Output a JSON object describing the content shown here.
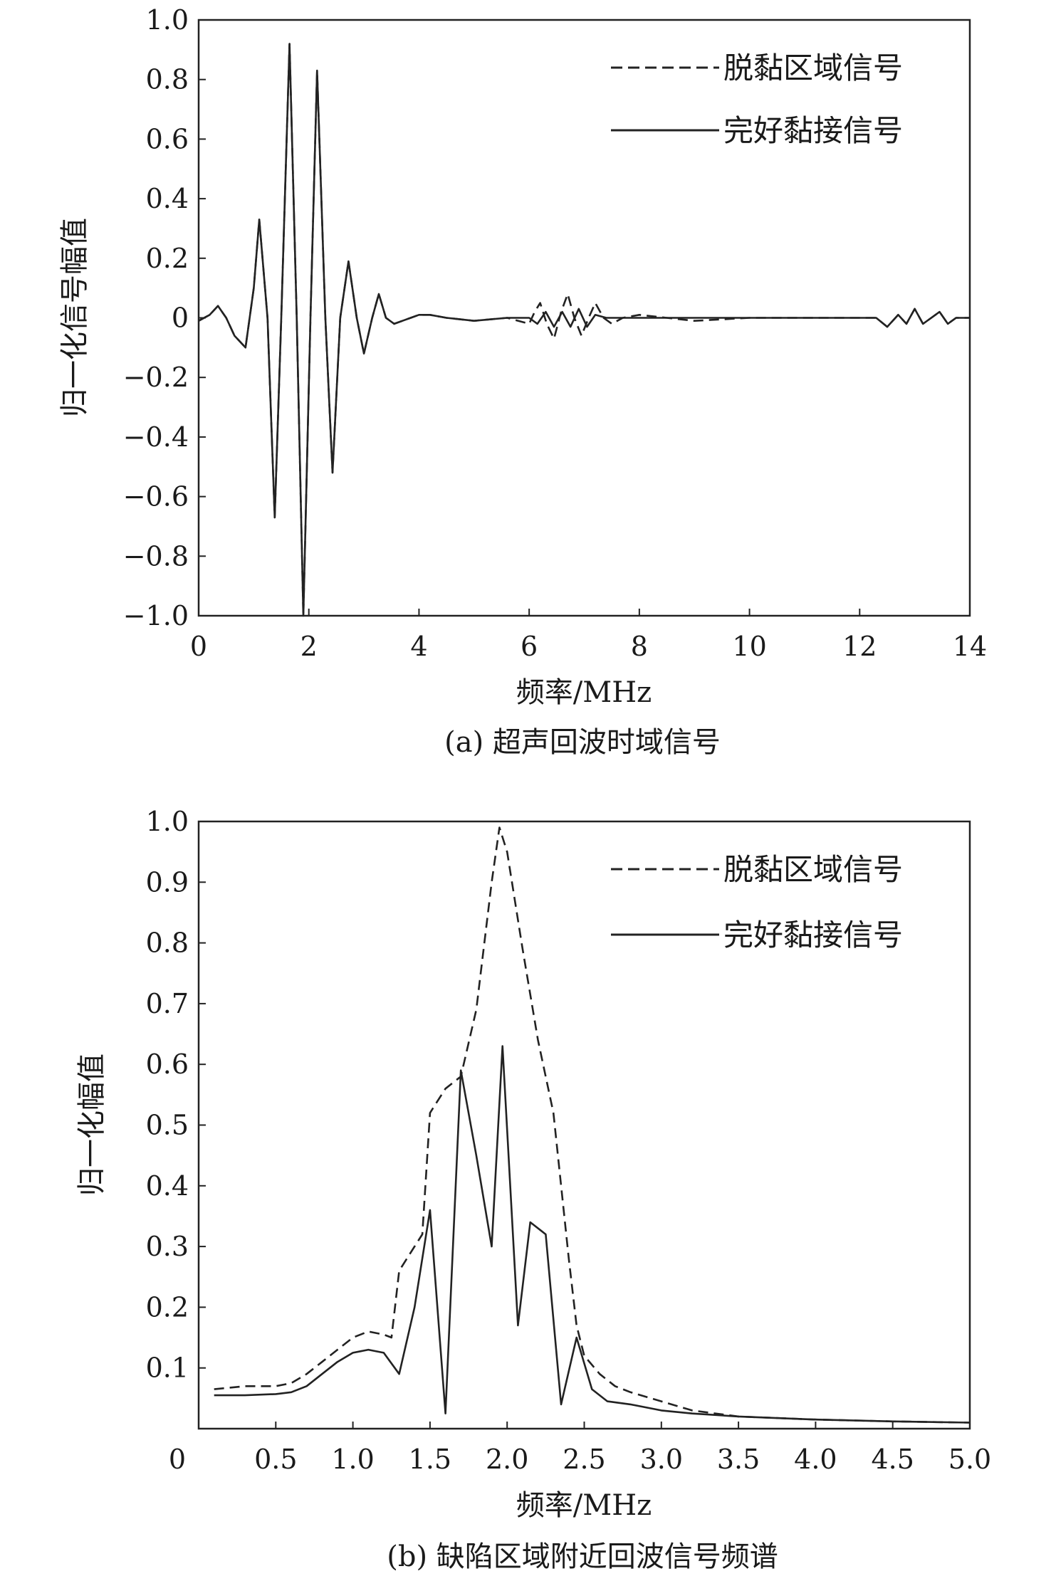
{
  "chart_data": [
    {
      "type": "line",
      "caption": "(a) 超声回波时域信号",
      "xlabel": "频率/MHz",
      "ylabel": "归一化信号幅值",
      "xlim": [
        0,
        14
      ],
      "ylim": [
        -1.0,
        1.0
      ],
      "x_ticks": [
        0,
        2,
        4,
        6,
        8,
        10,
        12,
        14
      ],
      "x_tick_labels": [
        "0",
        "2",
        "4",
        "6",
        "8",
        "10",
        "12",
        "14"
      ],
      "y_ticks": [
        1.0,
        0.8,
        0.6,
        0.4,
        0.2,
        0,
        -0.2,
        -0.4,
        -0.6,
        -0.8,
        -1.0
      ],
      "y_tick_labels": [
        "1.0",
        "0.8",
        "0.6",
        "0.4",
        "0.2",
        "0",
        "−0.2",
        "−0.4",
        "−0.6",
        "−0.8",
        "−1.0"
      ],
      "legend_position": "top-right",
      "series": [
        {
          "name": "脱黏区域信号",
          "style": "dashed",
          "x": [
            0,
            0.2,
            0.35,
            0.5,
            0.65,
            0.85,
            1.0,
            1.1,
            1.25,
            1.38,
            1.5,
            1.65,
            1.78,
            1.9,
            2.03,
            2.15,
            2.3,
            2.43,
            2.57,
            2.72,
            2.87,
            3.0,
            3.15,
            3.27,
            3.4,
            3.55,
            3.7,
            3.85,
            4.0,
            4.2,
            4.5,
            5.0,
            5.6,
            6.0,
            6.1,
            6.2,
            6.32,
            6.45,
            6.58,
            6.7,
            6.82,
            6.95,
            7.08,
            7.2,
            7.35,
            7.5,
            7.7,
            8.0,
            8.5,
            9.0,
            10.0,
            11.0,
            12.0,
            12.3,
            12.5,
            12.7,
            12.85,
            13.0,
            13.15,
            13.3,
            13.45,
            13.6,
            13.75,
            14.0
          ],
          "y": [
            -0.01,
            0.01,
            0.04,
            0.0,
            -0.06,
            -0.1,
            0.1,
            0.33,
            0.0,
            -0.67,
            0.0,
            0.92,
            0.0,
            -1.0,
            0.0,
            0.83,
            0.0,
            -0.52,
            0.0,
            0.19,
            0.0,
            -0.12,
            0.0,
            0.08,
            0.0,
            -0.02,
            -0.01,
            0.0,
            0.01,
            0.01,
            0.0,
            -0.01,
            0.0,
            -0.02,
            0.02,
            0.05,
            -0.02,
            -0.07,
            0.02,
            0.08,
            0.0,
            -0.06,
            0.0,
            0.05,
            0.0,
            -0.02,
            0.0,
            0.01,
            0.0,
            -0.01,
            0.0,
            0.0,
            0.0,
            0.0,
            -0.03,
            0.01,
            -0.02,
            0.03,
            -0.02,
            0.0,
            0.02,
            -0.02,
            0.0,
            0.0
          ]
        },
        {
          "name": "完好黏接信号",
          "style": "solid",
          "x": [
            0,
            0.2,
            0.35,
            0.5,
            0.65,
            0.85,
            1.0,
            1.1,
            1.25,
            1.38,
            1.5,
            1.65,
            1.78,
            1.9,
            2.03,
            2.15,
            2.3,
            2.43,
            2.57,
            2.72,
            2.87,
            3.0,
            3.15,
            3.27,
            3.4,
            3.55,
            3.7,
            3.85,
            4.0,
            4.2,
            4.5,
            5.0,
            5.6,
            6.0,
            6.15,
            6.3,
            6.45,
            6.6,
            6.75,
            6.9,
            7.05,
            7.2,
            7.4,
            7.7,
            8.0,
            8.5,
            9.0,
            10.0,
            11.0,
            12.0,
            12.3,
            12.5,
            12.7,
            12.85,
            13.0,
            13.15,
            13.3,
            13.45,
            13.6,
            13.75,
            14.0
          ],
          "y": [
            -0.01,
            0.01,
            0.04,
            0.0,
            -0.06,
            -0.1,
            0.1,
            0.33,
            0.0,
            -0.67,
            0.0,
            0.92,
            0.0,
            -1.0,
            0.0,
            0.83,
            0.0,
            -0.52,
            0.0,
            0.19,
            0.0,
            -0.12,
            0.0,
            0.08,
            0.0,
            -0.02,
            -0.01,
            0.0,
            0.01,
            0.01,
            0.0,
            -0.01,
            0.0,
            0.0,
            -0.02,
            0.02,
            -0.03,
            0.02,
            -0.03,
            0.03,
            -0.03,
            0.01,
            0.0,
            0.0,
            0.0,
            0.0,
            0.0,
            0.0,
            0.0,
            0.0,
            0.0,
            -0.03,
            0.01,
            -0.02,
            0.03,
            -0.02,
            0.0,
            0.02,
            -0.02,
            0.0,
            0.0
          ]
        }
      ]
    },
    {
      "type": "line",
      "caption": "(b) 缺陷区域附近回波信号频谱",
      "xlabel": "频率/MHz",
      "ylabel": "归一化幅值",
      "xlim": [
        0,
        5.0
      ],
      "ylim": [
        0,
        1.0
      ],
      "x_ticks": [
        0,
        0.5,
        1.0,
        1.5,
        2.0,
        2.5,
        3.0,
        3.5,
        4.0,
        4.5,
        5.0
      ],
      "x_tick_labels": [
        "0",
        "0.5",
        "1.0",
        "1.5",
        "2.0",
        "2.5",
        "3.0",
        "3.5",
        "4.0",
        "4.5",
        "5.0"
      ],
      "y_ticks": [
        1.0,
        0.9,
        0.8,
        0.7,
        0.6,
        0.5,
        0.4,
        0.3,
        0.2,
        0.1
      ],
      "y_tick_labels": [
        "1.0",
        "0.9",
        "0.8",
        "0.7",
        "0.6",
        "0.5",
        "0.4",
        "0.3",
        "0.2",
        "0.1"
      ],
      "legend_position": "top-right",
      "series": [
        {
          "name": "脱黏区域信号",
          "style": "dashed",
          "x": [
            0.1,
            0.3,
            0.5,
            0.6,
            0.7,
            0.8,
            0.9,
            1.0,
            1.1,
            1.2,
            1.25,
            1.3,
            1.4,
            1.45,
            1.5,
            1.6,
            1.7,
            1.8,
            1.9,
            1.95,
            2.0,
            2.1,
            2.2,
            2.3,
            2.4,
            2.45,
            2.5,
            2.6,
            2.7,
            2.8,
            3.0,
            3.2,
            3.5,
            4.0,
            4.5,
            5.0
          ],
          "y": [
            0.065,
            0.07,
            0.07,
            0.075,
            0.09,
            0.11,
            0.13,
            0.15,
            0.16,
            0.155,
            0.15,
            0.26,
            0.3,
            0.32,
            0.52,
            0.56,
            0.58,
            0.69,
            0.9,
            0.99,
            0.95,
            0.79,
            0.64,
            0.52,
            0.28,
            0.17,
            0.12,
            0.09,
            0.07,
            0.06,
            0.045,
            0.03,
            0.02,
            0.015,
            0.012,
            0.01
          ]
        },
        {
          "name": "完好黏接信号",
          "style": "solid",
          "x": [
            0.1,
            0.3,
            0.5,
            0.6,
            0.7,
            0.8,
            0.9,
            1.0,
            1.1,
            1.2,
            1.3,
            1.4,
            1.5,
            1.6,
            1.7,
            1.8,
            1.9,
            1.97,
            2.07,
            2.15,
            2.25,
            2.35,
            2.45,
            2.55,
            2.65,
            2.8,
            3.0,
            3.2,
            3.5,
            4.0,
            4.5,
            5.0
          ],
          "y": [
            0.055,
            0.055,
            0.057,
            0.06,
            0.07,
            0.09,
            0.11,
            0.125,
            0.13,
            0.125,
            0.09,
            0.2,
            0.36,
            0.025,
            0.59,
            0.45,
            0.3,
            0.63,
            0.17,
            0.34,
            0.32,
            0.04,
            0.15,
            0.065,
            0.045,
            0.04,
            0.03,
            0.025,
            0.02,
            0.015,
            0.012,
            0.01
          ]
        }
      ]
    }
  ]
}
